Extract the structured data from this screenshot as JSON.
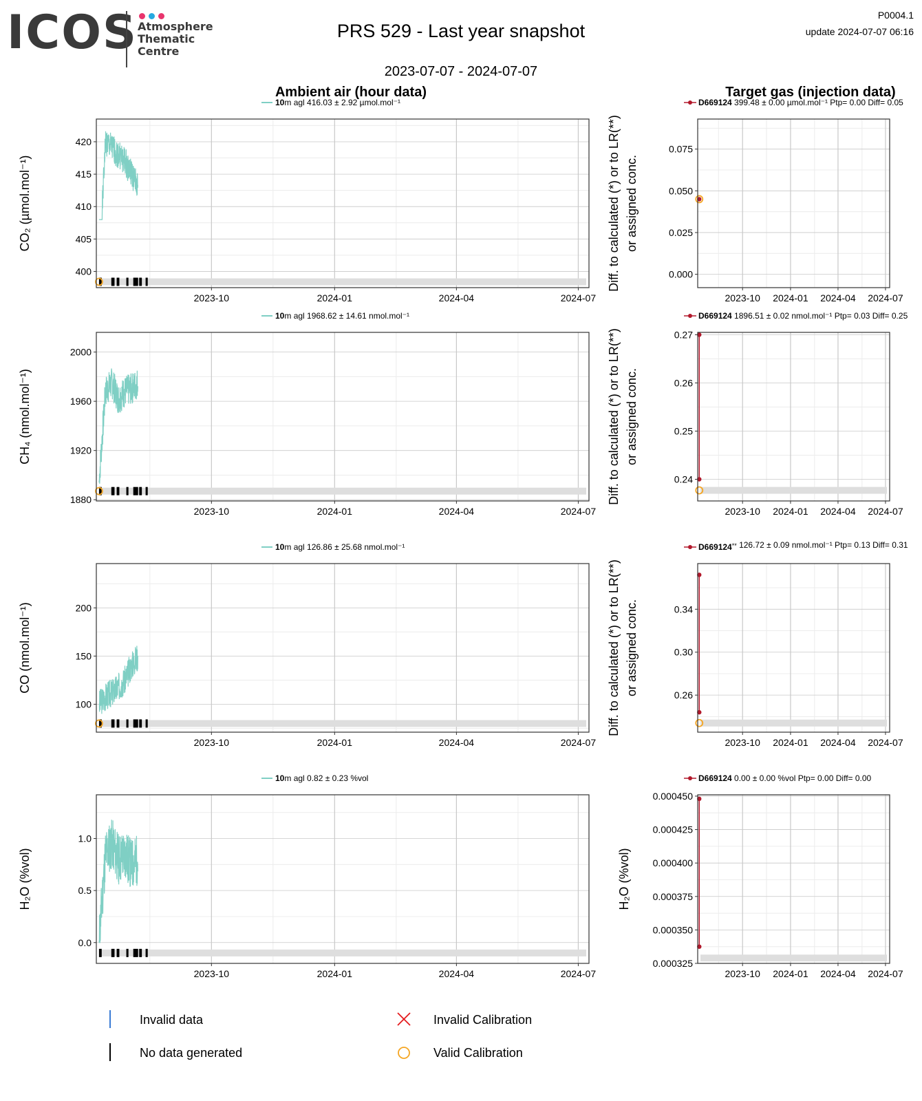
{
  "header": {
    "logo_text": "ICOS",
    "logo_sub": [
      "Atmosphere",
      "Thematic",
      "Centre"
    ],
    "logo_dot_colors": [
      "#e8356d",
      "#26a9e0",
      "#e8356d"
    ],
    "title": "PRS 529 - Last year snapshot",
    "doc_id": "P0004.1",
    "update": "update  2024-07-07 06:16",
    "date_range": "2023-07-07 - 2024-07-07"
  },
  "columns": {
    "left_title": "Ambient air (hour data)",
    "right_title": "Target gas (injection data)"
  },
  "colors": {
    "ambient_line": "#7fcfc4",
    "target_line": "#b2182b",
    "valid_calibration": "#f5a623",
    "invalid_calibration": "#e41a1c",
    "invalid_data": "#3a7bd5",
    "grid_major": "#c8c8c8",
    "grid_minor": "#ececec",
    "status_bar": "#dedede"
  },
  "chart_data": [
    {
      "id": "co2-ambient",
      "type": "line",
      "panel": "ambient",
      "ylabel": "CO₂ (µmol.mol⁻¹)",
      "ylim": [
        397.5,
        423.5
      ],
      "yticks": [
        400,
        405,
        410,
        415,
        420
      ],
      "xlim": [
        "2023-07-07",
        "2024-07-09"
      ],
      "xticks": [
        {
          "label": "2023-10",
          "date": "2023-10-01"
        },
        {
          "label": "2024-01",
          "date": "2024-01-01"
        },
        {
          "label": "2024-04",
          "date": "2024-04-01"
        },
        {
          "label": "2024-07",
          "date": "2024-07-01"
        }
      ],
      "legend": {
        "height": "10",
        "text": "m agl 416.03 ± 2.92 µmol.mol⁻¹"
      },
      "series_seed": 1,
      "series_start": "2023-07-09",
      "series_end": "2023-08-07",
      "series_base": [
        399.5,
        420,
        419,
        418,
        417,
        415,
        413
      ],
      "series_range": [
        408.0,
        423.0
      ],
      "series_noise": 2.2,
      "status_y": 398.4,
      "calibration_marker": true
    },
    {
      "id": "co2-target",
      "type": "scatter",
      "panel": "target",
      "ylabel_lines": [
        "Diff. to calculated (*) or to LR(**)",
        "or assigned conc."
      ],
      "ylim": [
        -0.008,
        0.093
      ],
      "yticks": [
        0.0,
        0.025,
        0.05,
        0.075
      ],
      "ytick_labels": [
        "0.000",
        "0.025",
        "0.050",
        "0.075"
      ],
      "xlim": [
        "2023-07-07",
        "2024-07-09"
      ],
      "xticks": [
        {
          "label": "2023-10",
          "date": "2023-10-01"
        },
        {
          "label": "2024-01",
          "date": "2024-01-01"
        },
        {
          "label": "2024-04",
          "date": "2024-04-01"
        },
        {
          "label": "2024-07",
          "date": "2024-07-01"
        }
      ],
      "legend": {
        "cylinder": "D669124",
        "suffix": "",
        "text": " 399.48 ± 0.00 µmol.mol⁻¹ Ptp= 0.00 Diff= 0.05"
      },
      "points": [
        {
          "x": "2023-07-10",
          "y": 0.045
        }
      ],
      "calibration_y": 0.045,
      "status_bar": false
    },
    {
      "id": "ch4-ambient",
      "type": "line",
      "panel": "ambient",
      "ylabel": "CH₄ (nmol.mol⁻¹)",
      "ylim": [
        1879,
        2016
      ],
      "yticks": [
        1880,
        1920,
        1960,
        2000
      ],
      "xlim": [
        "2023-07-07",
        "2024-07-09"
      ],
      "xticks": [
        {
          "label": "2023-10",
          "date": "2023-10-01"
        },
        {
          "label": "2024-01",
          "date": "2024-01-01"
        },
        {
          "label": "2024-04",
          "date": "2024-04-01"
        },
        {
          "label": "2024-07",
          "date": "2024-07-01"
        }
      ],
      "legend": {
        "height": "10",
        "text": "m agl 1968.62 ± 14.61 nmol.mol⁻¹"
      },
      "series_seed": 7,
      "series_start": "2023-07-09",
      "series_end": "2023-08-07",
      "series_base": [
        1894,
        1968,
        1975,
        1962,
        1968,
        1970,
        1975
      ],
      "series_range": [
        1893,
        2016
      ],
      "series_noise": 13,
      "status_y": 1887,
      "calibration_marker": true
    },
    {
      "id": "ch4-target",
      "type": "scatter",
      "panel": "target",
      "ylabel_lines": [
        "Diff. to calculated (*) or to LR(**)",
        "or assigned conc."
      ],
      "ylim": [
        0.2355,
        0.2705
      ],
      "yticks": [
        0.24,
        0.25,
        0.26,
        0.27
      ],
      "ytick_labels": [
        "0.24",
        "0.25",
        "0.26",
        "0.27"
      ],
      "xlim": [
        "2023-07-07",
        "2024-07-09"
      ],
      "xticks": [
        {
          "label": "2023-10",
          "date": "2023-10-01"
        },
        {
          "label": "2024-01",
          "date": "2024-01-01"
        },
        {
          "label": "2024-04",
          "date": "2024-04-01"
        },
        {
          "label": "2024-07",
          "date": "2024-07-01"
        }
      ],
      "legend": {
        "cylinder": "D669124",
        "suffix": "",
        "text": " 1896.51 ± 0.02 nmol.mol⁻¹ Ptp= 0.03 Diff= 0.25"
      },
      "points": [
        {
          "x": "2023-07-10",
          "y": 0.27
        },
        {
          "x": "2023-07-10",
          "y": 0.24
        }
      ],
      "calibration_y": 0.2377,
      "status_bar": true,
      "status_y": 0.2377
    },
    {
      "id": "co-ambient",
      "type": "line",
      "panel": "ambient",
      "ylabel": "CO (nmol.mol⁻¹)",
      "ylim": [
        71,
        246
      ],
      "yticks": [
        100,
        150,
        200
      ],
      "xlim": [
        "2023-07-07",
        "2024-07-09"
      ],
      "xticks": [
        {
          "label": "2023-10",
          "date": "2023-10-01"
        },
        {
          "label": "2024-01",
          "date": "2024-01-01"
        },
        {
          "label": "2024-04",
          "date": "2024-04-01"
        },
        {
          "label": "2024-07",
          "date": "2024-07-01"
        }
      ],
      "legend": {
        "height": "10",
        "text": "m agl 126.86 ± 25.68 nmol.mol⁻¹"
      },
      "series_seed": 3,
      "series_start": "2023-07-09",
      "series_end": "2023-08-07",
      "series_base": [
        100,
        108,
        112,
        118,
        125,
        140,
        150
      ],
      "series_range": [
        90,
        235
      ],
      "series_noise": 15,
      "status_y": 80,
      "calibration_marker": true
    },
    {
      "id": "co-target",
      "type": "scatter",
      "panel": "target",
      "ylabel_lines": [
        "Diff. to calculated (*) or to LR(**)",
        "or assigned conc."
      ],
      "ylim": [
        0.2255,
        0.3825
      ],
      "yticks": [
        0.26,
        0.3,
        0.34
      ],
      "ytick_labels": [
        "0.26",
        "0.30",
        "0.34"
      ],
      "xlim": [
        "2023-07-07",
        "2024-07-09"
      ],
      "xticks": [
        {
          "label": "2023-10",
          "date": "2023-10-01"
        },
        {
          "label": "2024-01",
          "date": "2024-01-01"
        },
        {
          "label": "2024-04",
          "date": "2024-04-01"
        },
        {
          "label": "2024-07",
          "date": "2024-07-01"
        }
      ],
      "legend": {
        "cylinder": "D669124",
        "suffix": "**",
        "text": " 126.72 ± 0.09 nmol.mol⁻¹ Ptp= 0.13 Diff= 0.31"
      },
      "points": [
        {
          "x": "2023-07-10",
          "y": 0.372
        },
        {
          "x": "2023-07-10",
          "y": 0.244
        }
      ],
      "calibration_y": 0.234,
      "status_bar": true,
      "status_y": 0.234
    },
    {
      "id": "h2o-ambient",
      "type": "line",
      "panel": "ambient",
      "ylabel": "H₂O (%vol)",
      "ylim": [
        -0.2,
        1.42
      ],
      "yticks": [
        0.0,
        0.5,
        1.0
      ],
      "ytick_labels": [
        "0.0",
        "0.5",
        "1.0"
      ],
      "xlim": [
        "2023-07-07",
        "2024-07-09"
      ],
      "xticks": [
        {
          "label": "2023-10",
          "date": "2023-10-01"
        },
        {
          "label": "2024-01",
          "date": "2024-01-01"
        },
        {
          "label": "2024-04",
          "date": "2024-04-01"
        },
        {
          "label": "2024-07",
          "date": "2024-07-01"
        }
      ],
      "legend": {
        "height": "10",
        "text": "m agl 0.82 ± 0.23 %vol"
      },
      "series_seed": 11,
      "series_start": "2023-07-09",
      "series_end": "2023-08-07",
      "series_base": [
        0.0,
        0.85,
        0.95,
        0.8,
        0.85,
        0.75,
        0.8
      ],
      "series_range": [
        0.0,
        1.35
      ],
      "series_noise": 0.25,
      "status_y": -0.1,
      "calibration_marker": false
    },
    {
      "id": "h2o-target",
      "type": "scatter",
      "panel": "target",
      "ylabel": "H₂O (%vol)",
      "ylim": [
        0.000325,
        0.000451
      ],
      "yticks": [
        0.000325,
        0.00035,
        0.000375,
        0.0004,
        0.000425,
        0.00045
      ],
      "ytick_labels": [
        "0.000325",
        "0.000350",
        "0.000375",
        "0.000400",
        "0.000425",
        "0.000450"
      ],
      "xlim": [
        "2023-07-07",
        "2024-07-09"
      ],
      "xticks": [
        {
          "label": "2023-10",
          "date": "2023-10-01"
        },
        {
          "label": "2024-01",
          "date": "2024-01-01"
        },
        {
          "label": "2024-04",
          "date": "2024-04-01"
        },
        {
          "label": "2024-07",
          "date": "2024-07-01"
        }
      ],
      "legend": {
        "cylinder": "D669124",
        "suffix": "",
        "text": " 0.00 ± 0.00 %vol Ptp= 0.00 Diff= 0.00"
      },
      "points": [
        {
          "x": "2023-07-10",
          "y": 0.000448
        },
        {
          "x": "2023-07-10",
          "y": 0.0003375
        }
      ],
      "calibration_y": null,
      "status_bar": true,
      "status_y": 0.000329
    }
  ],
  "footer_legend": {
    "invalid_data": "Invalid data",
    "no_data": "No data generated",
    "invalid_calibration": "Invalid Calibration",
    "valid_calibration": "Valid Calibration"
  }
}
